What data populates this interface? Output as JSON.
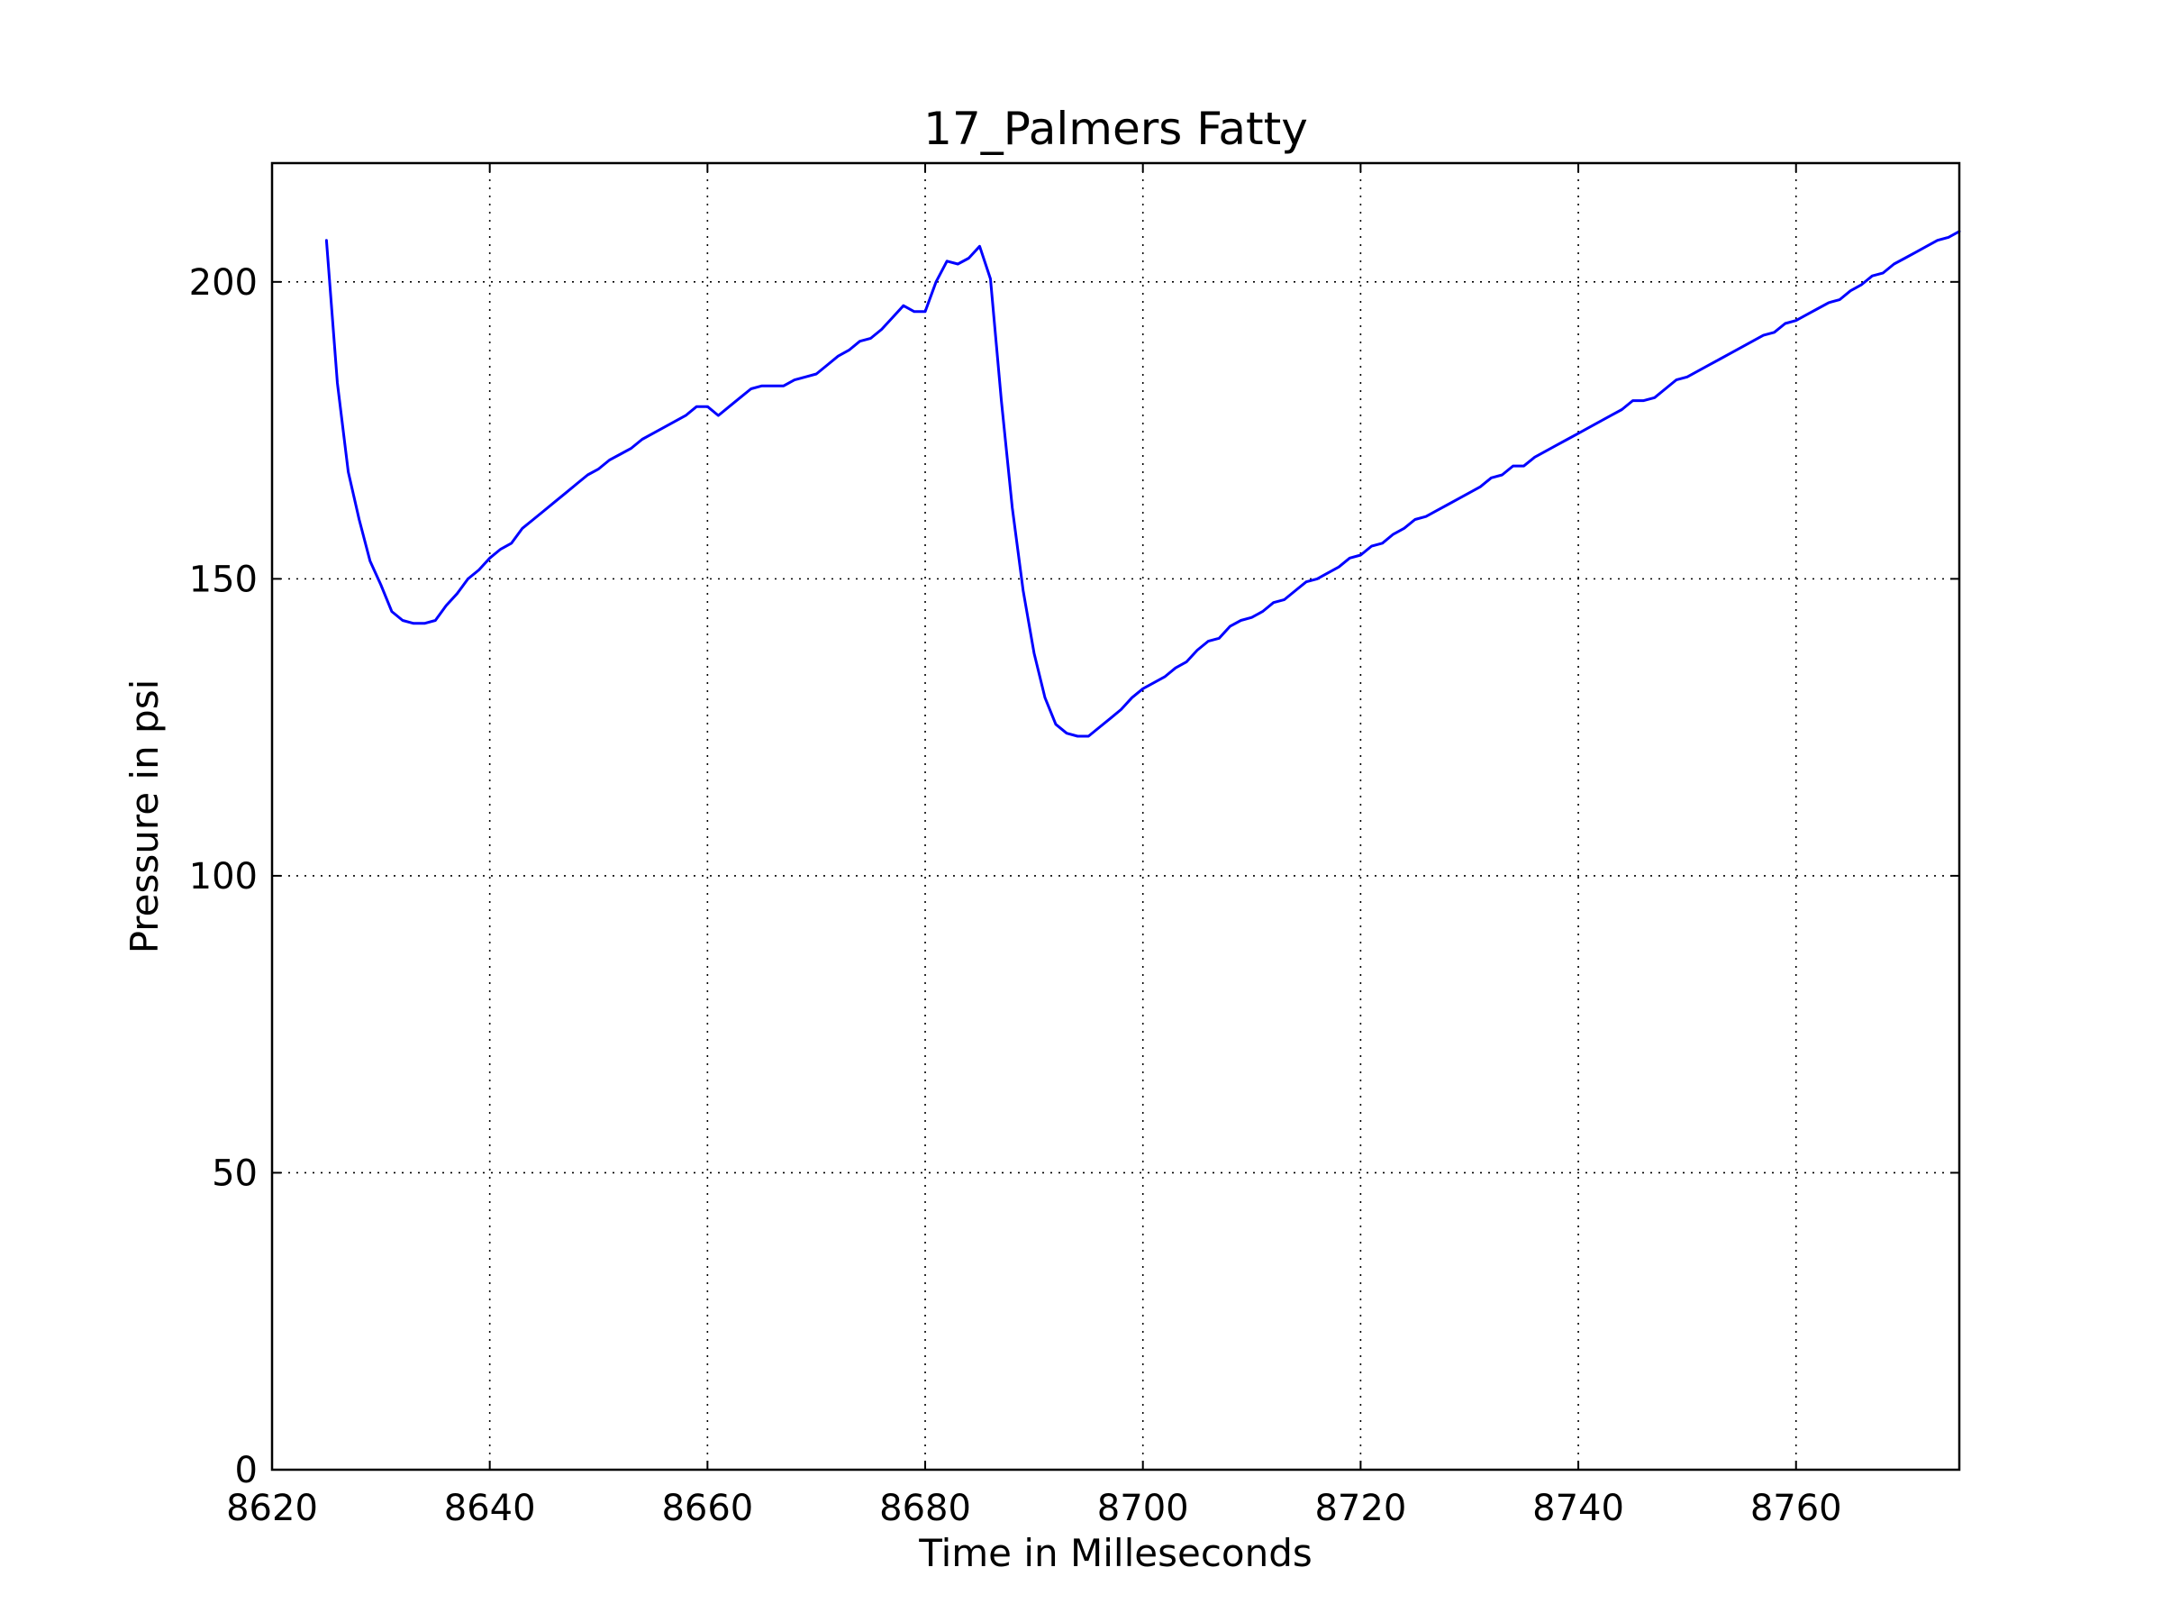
{
  "chart_data": {
    "type": "line",
    "title": "17_Palmers Fatty",
    "xlabel": "Time in Milleseconds",
    "ylabel": "Pressure in psi",
    "xlim": [
      8620,
      8775
    ],
    "ylim": [
      0,
      220
    ],
    "xticks": [
      8620,
      8640,
      8660,
      8680,
      8700,
      8720,
      8740,
      8760
    ],
    "yticks": [
      0,
      50,
      100,
      150,
      200
    ],
    "xtick_labels": [
      "8620",
      "8640",
      "8660",
      "8680",
      "8700",
      "8720",
      "8740",
      "8760"
    ],
    "ytick_labels": [
      "0",
      "50",
      "100",
      "150",
      "200"
    ],
    "grid": true,
    "legend": false,
    "series": [
      {
        "color": "#0000ff",
        "x": [
          8625,
          8626,
          8627,
          8628,
          8629,
          8630,
          8631,
          8632,
          8633,
          8634,
          8635,
          8636,
          8637,
          8638,
          8639,
          8640,
          8641,
          8642,
          8643,
          8644,
          8645,
          8646,
          8647,
          8648,
          8649,
          8650,
          8651,
          8652,
          8653,
          8654,
          8655,
          8656,
          8657,
          8658,
          8659,
          8660,
          8661,
          8662,
          8663,
          8664,
          8665,
          8666,
          8667,
          8668,
          8669,
          8670,
          8671,
          8672,
          8673,
          8674,
          8675,
          8676,
          8677,
          8678,
          8679,
          8680,
          8681,
          8682,
          8683,
          8684,
          8685,
          8686,
          8687,
          8688,
          8689,
          8690,
          8691,
          8692,
          8693,
          8694,
          8695,
          8696,
          8697,
          8698,
          8699,
          8700,
          8701,
          8702,
          8703,
          8704,
          8705,
          8706,
          8707,
          8708,
          8709,
          8710,
          8711,
          8712,
          8713,
          8714,
          8715,
          8716,
          8717,
          8718,
          8719,
          8720,
          8721,
          8722,
          8723,
          8724,
          8725,
          8726,
          8727,
          8728,
          8729,
          8730,
          8731,
          8732,
          8733,
          8734,
          8735,
          8736,
          8737,
          8738,
          8739,
          8740,
          8741,
          8742,
          8743,
          8744,
          8745,
          8746,
          8747,
          8748,
          8749,
          8750,
          8751,
          8752,
          8753,
          8754,
          8755,
          8756,
          8757,
          8758,
          8759,
          8760,
          8761,
          8762,
          8763,
          8764,
          8765,
          8766,
          8767,
          8768,
          8769,
          8770,
          8771,
          8772,
          8773,
          8774,
          8775
        ],
        "y": [
          207,
          183,
          168,
          160,
          153,
          149,
          144.5,
          143,
          142.5,
          142.5,
          143,
          145.5,
          147.5,
          150,
          151.5,
          153.5,
          155,
          156,
          158.5,
          160,
          161.5,
          163,
          164.5,
          166,
          167.5,
          168.5,
          170,
          171,
          172,
          173.5,
          174.5,
          175.5,
          176.5,
          177.5,
          179,
          179,
          177.5,
          179,
          180.5,
          182,
          182.5,
          182.5,
          182.5,
          183.5,
          184,
          184.5,
          186,
          187.5,
          188.5,
          190,
          190.5,
          192,
          194,
          196,
          195,
          195,
          200,
          203.5,
          203,
          204,
          206,
          200.5,
          180,
          162,
          148,
          137.5,
          130,
          125.5,
          124,
          123.5,
          123.5,
          125,
          126.5,
          128,
          130,
          131.5,
          132.5,
          133.5,
          135,
          136,
          138,
          139.5,
          140,
          142,
          143,
          143.5,
          144.5,
          146,
          146.5,
          148,
          149.5,
          150,
          151,
          152,
          153.5,
          154,
          155.5,
          156,
          157.5,
          158.5,
          160,
          160.5,
          161.5,
          162.5,
          163.5,
          164.5,
          165.5,
          167,
          167.5,
          169,
          169,
          170.5,
          171.5,
          172.5,
          173.5,
          174.5,
          175.5,
          176.5,
          177.5,
          178.5,
          180,
          180,
          180.5,
          182,
          183.5,
          184,
          185,
          186,
          187,
          188,
          189,
          190,
          191,
          191.5,
          193,
          193.5,
          194.5,
          195.5,
          196.5,
          197,
          198.5,
          199.5,
          201,
          201.5,
          203,
          204,
          205,
          206,
          207,
          207.5,
          208.5
        ]
      }
    ]
  }
}
